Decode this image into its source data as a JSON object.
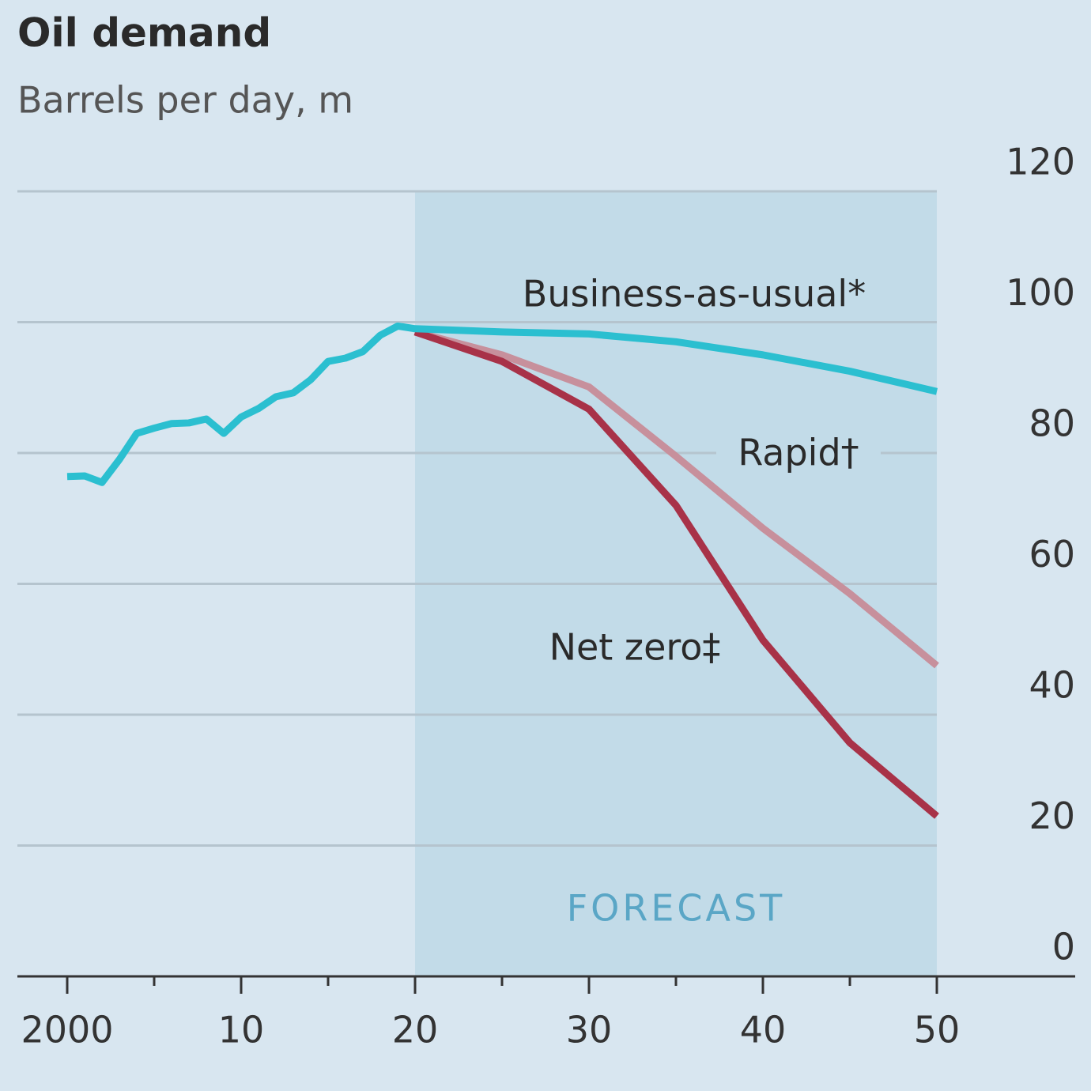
{
  "chart_data": {
    "type": "line",
    "title": "Oil demand",
    "subtitle": "Barrels per day, m",
    "forecast_label": "FORECAST",
    "forecast_span": [
      2020,
      2050
    ],
    "x": [
      2000,
      2001,
      2002,
      2003,
      2004,
      2005,
      2006,
      2007,
      2008,
      2009,
      2010,
      2011,
      2012,
      2013,
      2014,
      2015,
      2016,
      2017,
      2018,
      2019,
      2020,
      2025,
      2030,
      2035,
      2040,
      2045,
      2050
    ],
    "series": [
      {
        "name": "Business-as-usual*",
        "color": "#2bbfd0",
        "values": [
          76.4,
          76.5,
          75.5,
          79,
          83,
          83.8,
          84.5,
          84.6,
          85.2,
          83,
          85.5,
          86.8,
          88.6,
          89.2,
          91.2,
          94,
          94.5,
          95.5,
          98,
          99.4,
          99,
          98.5,
          98.2,
          97,
          95,
          92.5,
          89.4
        ]
      },
      {
        "name": "Rapid†",
        "color": "#c7909c",
        "values": [
          null,
          null,
          null,
          null,
          null,
          null,
          null,
          null,
          null,
          null,
          null,
          null,
          null,
          null,
          null,
          null,
          null,
          null,
          null,
          null,
          98.5,
          95,
          90.1,
          79.5,
          68.5,
          58.5,
          47.5
        ]
      },
      {
        "name": "Net zero‡",
        "color": "#a83248",
        "values": [
          null,
          null,
          null,
          null,
          null,
          null,
          null,
          null,
          null,
          null,
          null,
          null,
          null,
          null,
          null,
          null,
          null,
          null,
          null,
          null,
          98.5,
          94,
          86.7,
          72,
          51.4,
          35.7,
          24.5
        ]
      }
    ],
    "xlim": [
      1997,
      2058
    ],
    "xticks": [
      2000,
      {
        "value": 2010,
        "label": "10"
      },
      {
        "value": 2020,
        "label": "20"
      },
      {
        "value": 2030,
        "label": "30"
      },
      {
        "value": 2040,
        "label": "40"
      },
      {
        "value": 2050,
        "label": "50"
      }
    ],
    "xminorticks": [
      2005,
      2015,
      2025,
      2035,
      2045
    ],
    "ylim": [
      0,
      120
    ],
    "yticks": [
      0,
      20,
      40,
      60,
      80,
      100,
      120
    ],
    "grid": true
  }
}
